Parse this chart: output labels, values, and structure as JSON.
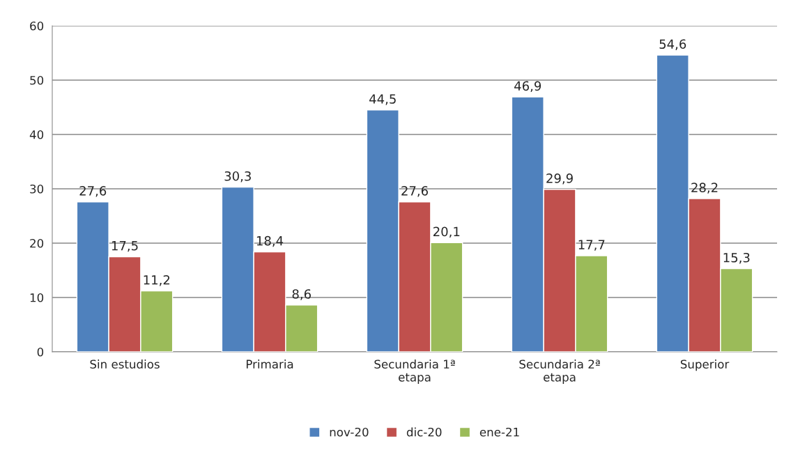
{
  "chart_data": {
    "type": "bar",
    "categories": [
      "Sin estudios",
      "Primaria",
      "Secundaria 1ª\netapa",
      "Secundaria 2ª\netapa",
      "Superior"
    ],
    "series": [
      {
        "name": "nov-20",
        "color": "#4f81bd",
        "values": [
          27.6,
          30.3,
          44.5,
          46.9,
          54.6
        ],
        "value_labels": [
          "27,6",
          "30,3",
          "44,5",
          "46,9",
          "54,6"
        ]
      },
      {
        "name": "dic-20",
        "color": "#c0504d",
        "values": [
          17.5,
          18.4,
          27.6,
          29.9,
          28.2
        ],
        "value_labels": [
          "17,5",
          "18,4",
          "27,6",
          "29,9",
          "28,2"
        ]
      },
      {
        "name": "ene-21",
        "color": "#9bbb59",
        "values": [
          11.2,
          8.6,
          20.1,
          17.7,
          15.3
        ],
        "value_labels": [
          "11,2",
          "8,6",
          "20,1",
          "17,7",
          "15,3"
        ]
      }
    ],
    "ylim": [
      0,
      60
    ],
    "yticks": [
      0,
      10,
      20,
      30,
      40,
      50,
      60
    ],
    "grid": "y",
    "legend": "bottom"
  }
}
